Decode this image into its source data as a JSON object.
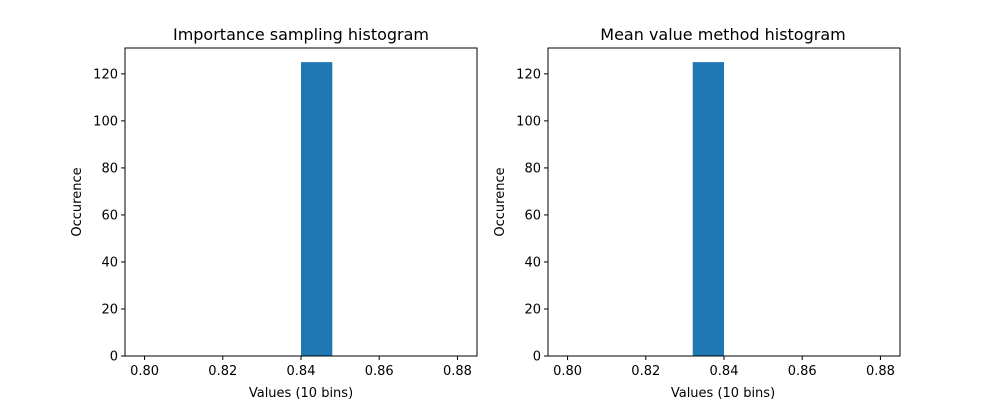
{
  "chart_data": [
    {
      "type": "bar",
      "title": "Importance sampling histogram",
      "xlabel": "Values (10 bins)",
      "ylabel": "Occurence",
      "xlim": [
        0.795,
        0.885
      ],
      "ylim": [
        0,
        131
      ],
      "xticks": [
        0.8,
        0.82,
        0.84,
        0.86,
        0.88
      ],
      "xtick_labels": [
        "0.80",
        "0.82",
        "0.84",
        "0.86",
        "0.88"
      ],
      "yticks": [
        0,
        20,
        40,
        60,
        80,
        100,
        120
      ],
      "ytick_labels": [
        "0",
        "20",
        "40",
        "60",
        "80",
        "100",
        "120"
      ],
      "bars": [
        {
          "x0": 0.84,
          "x1": 0.848,
          "value": 125
        }
      ],
      "color": "#1f77b4",
      "grid": false
    },
    {
      "type": "bar",
      "title": "Mean value method histogram",
      "xlabel": "Values (10 bins)",
      "ylabel": "Occurence",
      "xlim": [
        0.795,
        0.885
      ],
      "ylim": [
        0,
        131
      ],
      "xticks": [
        0.8,
        0.82,
        0.84,
        0.86,
        0.88
      ],
      "xtick_labels": [
        "0.80",
        "0.82",
        "0.84",
        "0.86",
        "0.88"
      ],
      "yticks": [
        0,
        20,
        40,
        60,
        80,
        100,
        120
      ],
      "ytick_labels": [
        "0",
        "20",
        "40",
        "60",
        "80",
        "100",
        "120"
      ],
      "bars": [
        {
          "x0": 0.832,
          "x1": 0.84,
          "value": 125
        }
      ],
      "color": "#1f77b4",
      "grid": false
    }
  ]
}
